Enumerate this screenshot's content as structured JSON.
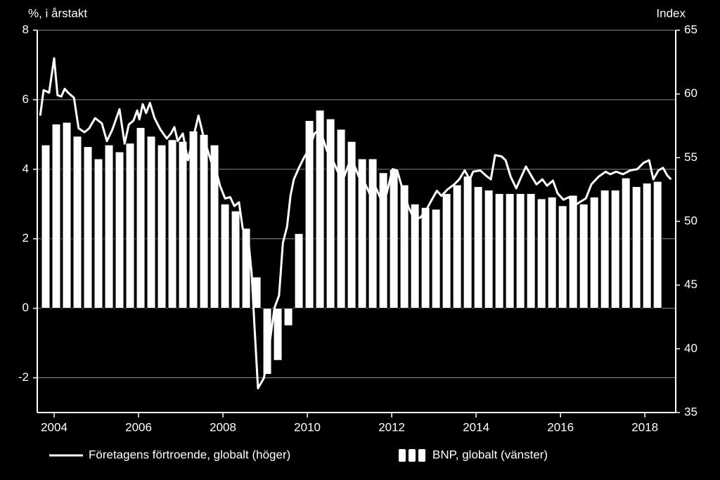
{
  "chart_data": {
    "type": "bar",
    "y_label": "%, i årstakt",
    "y2_label": "Index",
    "xlim": [
      2003.6,
      2018.73
    ],
    "xticks": [
      2004,
      2006,
      2008,
      2010,
      2012,
      2014,
      2016,
      2018
    ],
    "ylim": [
      -3,
      8
    ],
    "yticks": [
      -2,
      0,
      2,
      4,
      6,
      8
    ],
    "y2lim": [
      35,
      65
    ],
    "y2ticks": [
      35,
      40,
      45,
      50,
      55,
      60,
      65
    ],
    "grid": true,
    "legend": "bottom",
    "series": [
      {
        "name": "Företagens förtroende, globalt (höger)",
        "type": "line",
        "axis": "y2",
        "color": "#ffffff",
        "x": [
          2003.67,
          2003.75,
          2003.88,
          2004.0,
          2004.08,
          2004.17,
          2004.25,
          2004.33,
          2004.47,
          2004.58,
          2004.72,
          2004.83,
          2004.97,
          2005.13,
          2005.25,
          2005.38,
          2005.55,
          2005.67,
          2005.77,
          2005.88,
          2005.97,
          2006.02,
          2006.1,
          2006.18,
          2006.27,
          2006.38,
          2006.52,
          2006.67,
          2006.77,
          2006.85,
          2006.93,
          2007.05,
          2007.17,
          2007.3,
          2007.42,
          2007.55,
          2007.72,
          2007.83,
          2007.93,
          2008.05,
          2008.17,
          2008.27,
          2008.38,
          2008.47,
          2008.58,
          2008.68,
          2008.75,
          2008.83,
          2008.97,
          2009.08,
          2009.22,
          2009.33,
          2009.42,
          2009.52,
          2009.6,
          2009.68,
          2009.8,
          2009.92,
          2010.05,
          2010.17,
          2010.3,
          2010.47,
          2010.58,
          2010.72,
          2010.85,
          2010.97,
          2011.08,
          2011.22,
          2011.35,
          2011.5,
          2011.63,
          2011.75,
          2011.88,
          2012.02,
          2012.13,
          2012.25,
          2012.4,
          2012.53,
          2012.68,
          2012.82,
          2012.95,
          2013.07,
          2013.18,
          2013.32,
          2013.48,
          2013.6,
          2013.73,
          2013.85,
          2013.93,
          2014.1,
          2014.23,
          2014.35,
          2014.45,
          2014.6,
          2014.7,
          2014.82,
          2014.95,
          2015.07,
          2015.18,
          2015.32,
          2015.43,
          2015.57,
          2015.68,
          2015.82,
          2015.93,
          2016.07,
          2016.2,
          2016.32,
          2016.45,
          2016.6,
          2016.73,
          2016.9,
          2017.07,
          2017.18,
          2017.32,
          2017.48,
          2017.65,
          2017.82,
          2017.97,
          2018.1,
          2018.2,
          2018.32,
          2018.43,
          2018.53,
          2018.62
        ],
        "values": [
          58.3,
          60.3,
          60.1,
          62.8,
          59.9,
          59.8,
          60.4,
          60.1,
          59.7,
          57.3,
          57.0,
          57.3,
          58.1,
          57.7,
          56.3,
          57.2,
          58.8,
          56.1,
          57.6,
          57.9,
          58.7,
          58.0,
          59.2,
          58.5,
          59.3,
          58.1,
          57.2,
          56.5,
          56.9,
          57.4,
          56.3,
          56.9,
          54.8,
          56.6,
          58.3,
          56.5,
          54.7,
          54.1,
          52.8,
          51.8,
          51.9,
          51.2,
          51.5,
          49.4,
          49.3,
          45.9,
          41.6,
          36.9,
          37.7,
          39.8,
          43.2,
          44.2,
          48.3,
          49.6,
          52.0,
          53.3,
          54.2,
          55.0,
          55.7,
          56.9,
          57.2,
          55.5,
          55.0,
          53.9,
          53.3,
          54.4,
          54.7,
          53.5,
          53.1,
          52.0,
          52.6,
          51.7,
          52.2,
          54.1,
          54.0,
          52.6,
          51.1,
          50.2,
          50.3,
          50.9,
          51.7,
          52.4,
          52.0,
          52.5,
          52.9,
          53.3,
          54.0,
          53.3,
          53.9,
          54.0,
          53.6,
          53.3,
          55.2,
          55.1,
          54.8,
          53.5,
          52.6,
          53.5,
          54.3,
          53.5,
          52.9,
          53.3,
          52.8,
          53.2,
          52.2,
          51.7,
          51.9,
          51.2,
          51.5,
          51.8,
          52.9,
          53.5,
          53.9,
          53.7,
          53.9,
          53.7,
          54.0,
          54.1,
          54.6,
          54.8,
          53.3,
          54.0,
          54.2,
          53.6,
          53.3
        ]
      },
      {
        "name": "BNP, globalt (vänster)",
        "type": "bar",
        "axis": "y",
        "color": "#ffffff",
        "x": [
          2003.8,
          2004.05,
          2004.3,
          2004.55,
          2004.8,
          2005.05,
          2005.3,
          2005.55,
          2005.8,
          2006.05,
          2006.3,
          2006.55,
          2006.8,
          2007.05,
          2007.3,
          2007.55,
          2007.8,
          2008.05,
          2008.3,
          2008.55,
          2008.8,
          2009.05,
          2009.3,
          2009.55,
          2009.8,
          2010.05,
          2010.3,
          2010.55,
          2010.8,
          2011.05,
          2011.3,
          2011.55,
          2011.8,
          2012.05,
          2012.3,
          2012.55,
          2012.8,
          2013.05,
          2013.3,
          2013.55,
          2013.8,
          2014.05,
          2014.3,
          2014.55,
          2014.8,
          2015.05,
          2015.3,
          2015.55,
          2015.8,
          2016.05,
          2016.3,
          2016.55,
          2016.8,
          2017.05,
          2017.3,
          2017.55,
          2017.8,
          2018.05,
          2018.3
        ],
        "values": [
          4.7,
          5.3,
          5.35,
          4.95,
          4.65,
          4.3,
          4.7,
          4.5,
          4.75,
          5.2,
          4.95,
          4.7,
          4.85,
          4.8,
          5.1,
          5.0,
          4.7,
          3.0,
          2.8,
          2.3,
          0.9,
          -1.9,
          -1.5,
          -0.5,
          2.15,
          5.4,
          5.7,
          5.45,
          5.15,
          4.8,
          4.3,
          4.3,
          3.9,
          4.0,
          3.55,
          3.0,
          2.9,
          2.85,
          3.3,
          3.55,
          3.8,
          3.5,
          3.4,
          3.3,
          3.3,
          3.3,
          3.3,
          3.15,
          3.2,
          2.95,
          3.25,
          3.0,
          3.2,
          3.4,
          3.4,
          3.75,
          3.5,
          3.6,
          3.65
        ]
      }
    ]
  }
}
